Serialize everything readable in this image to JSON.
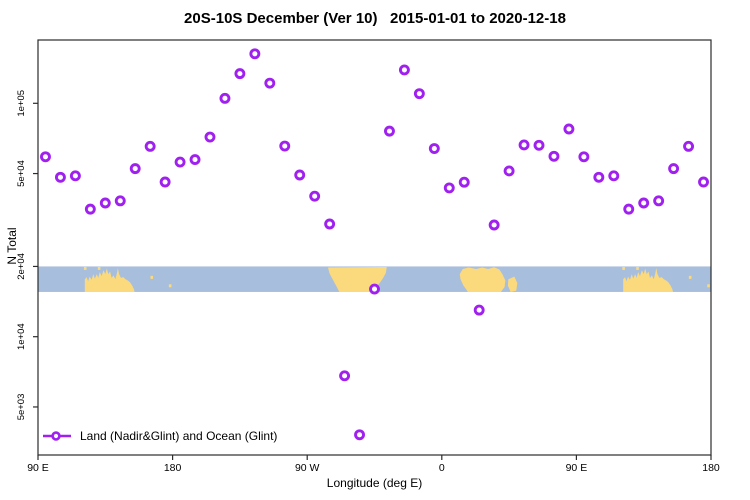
{
  "chart_data": {
    "type": "scatter",
    "title": "20S-10S December (Ver 10)   2015-01-01 to 2020-12-18",
    "xlabel": "Longitude (deg E)",
    "ylabel": "N Total",
    "x_axis": {
      "min": 90,
      "max": 540,
      "ticks": [
        {
          "label": "90 E",
          "lon": 90
        },
        {
          "label": "180",
          "lon": 180
        },
        {
          "label": "90 W",
          "lon": 270
        },
        {
          "label": "0",
          "lon": 360
        },
        {
          "label": "90 E",
          "lon": 450
        },
        {
          "label": "180",
          "lon": 540
        }
      ]
    },
    "y_axis": {
      "scale": "log",
      "min": 3100,
      "max": 186000,
      "ticks": [
        {
          "label": "1e+05",
          "value": 100000
        },
        {
          "label": "5e+04",
          "value": 50000
        },
        {
          "label": "2e+04",
          "value": 20000
        },
        {
          "label": "1e+04",
          "value": 10000
        },
        {
          "label": "5e+03",
          "value": 5000
        }
      ]
    },
    "series": [
      {
        "name": "Land (Nadir&Glint) and Ocean (Glint)",
        "marker": "open-circle",
        "color": "#A020F0",
        "points": [
          [
            95,
            59000
          ],
          [
            105,
            48200
          ],
          [
            115,
            48900
          ],
          [
            125,
            35200
          ],
          [
            135,
            37400
          ],
          [
            145,
            38200
          ],
          [
            155,
            52500
          ],
          [
            165,
            65400
          ],
          [
            175,
            46000
          ],
          [
            185,
            56000
          ],
          [
            195,
            57400
          ],
          [
            205,
            71700
          ],
          [
            215,
            105000
          ],
          [
            225,
            134000
          ],
          [
            235,
            163000
          ],
          [
            245,
            122000
          ],
          [
            255,
            65600
          ],
          [
            265,
            49300
          ],
          [
            275,
            40000
          ],
          [
            285,
            30400
          ],
          [
            295,
            6800
          ],
          [
            305,
            3800
          ],
          [
            315,
            16000
          ],
          [
            325,
            76000
          ],
          [
            335,
            139000
          ],
          [
            345,
            110000
          ],
          [
            355,
            64000
          ],
          [
            365,
            43400
          ],
          [
            375,
            45900
          ],
          [
            385,
            13000
          ],
          [
            395,
            30100
          ],
          [
            405,
            51300
          ],
          [
            415,
            66300
          ],
          [
            425,
            66100
          ],
          [
            435,
            59300
          ],
          [
            445,
            77600
          ],
          [
            455,
            59000
          ],
          [
            465,
            48200
          ],
          [
            475,
            48900
          ],
          [
            485,
            35200
          ],
          [
            495,
            37400
          ],
          [
            505,
            38200
          ],
          [
            515,
            52500
          ],
          [
            525,
            65400
          ],
          [
            535,
            46000
          ]
        ]
      }
    ],
    "map_strip": {
      "top_value": 20000,
      "bottom_value": 15550,
      "ocean_color": "#a8bedd",
      "land_color": "#fbd97d",
      "repeat_offsets": [
        0,
        360
      ],
      "land_polygons": [
        {
          "name": "australia",
          "points": [
            [
              121.3,
              1
            ],
            [
              121.3,
              0.5
            ],
            [
              122.5,
              0.42
            ],
            [
              123.5,
              0.58
            ],
            [
              124.5,
              0.4
            ],
            [
              125.8,
              0.52
            ],
            [
              127,
              0.3
            ],
            [
              128,
              0.48
            ],
            [
              129.3,
              0.3
            ],
            [
              130.3,
              0.45
            ],
            [
              131.3,
              0.22
            ],
            [
              132.5,
              0.38
            ],
            [
              133.8,
              0.15
            ],
            [
              135,
              0.3
            ],
            [
              136,
              0.08
            ],
            [
              137,
              0.3
            ],
            [
              138.2,
              0.2
            ],
            [
              139.2,
              0.45
            ],
            [
              140.5,
              0.35
            ],
            [
              141.7,
              0.5
            ],
            [
              142.7,
              0.28
            ],
            [
              143.4,
              0.06
            ],
            [
              144.2,
              0.3
            ],
            [
              145.5,
              0.45
            ],
            [
              147,
              0.42
            ],
            [
              148.5,
              0.5
            ],
            [
              150,
              0.55
            ],
            [
              151.5,
              0.62
            ],
            [
              153,
              0.75
            ],
            [
              154.2,
              0.9
            ],
            [
              154.6,
              1
            ]
          ]
        },
        {
          "name": "south-america",
          "points": [
            [
              283.9,
              0.04
            ],
            [
              323.2,
              0.02
            ],
            [
              322.6,
              0.25
            ],
            [
              320.8,
              0.45
            ],
            [
              318.5,
              0.65
            ],
            [
              315.5,
              0.85
            ],
            [
              311.5,
              1
            ],
            [
              291.5,
              1
            ],
            [
              289.3,
              0.75
            ],
            [
              287,
              0.5
            ],
            [
              285,
              0.28
            ],
            [
              283.9,
              0.04
            ]
          ]
        },
        {
          "name": "africa",
          "points": [
            [
              372,
              0.3
            ],
            [
              374,
              0.1
            ],
            [
              378,
              0.04
            ],
            [
              383,
              0.1
            ],
            [
              387,
              0.04
            ],
            [
              391,
              0.1
            ],
            [
              395,
              0.03
            ],
            [
              398.5,
              0.12
            ],
            [
              400.5,
              0.3
            ],
            [
              402.5,
              0.55
            ],
            [
              402,
              0.8
            ],
            [
              399.5,
              1
            ],
            [
              377.5,
              1
            ],
            [
              374.5,
              0.75
            ],
            [
              372.5,
              0.5
            ]
          ]
        },
        {
          "name": "madagascar",
          "points": [
            [
              404.5,
              0.5
            ],
            [
              408.5,
              0.4
            ],
            [
              410.5,
              0.65
            ],
            [
              409.8,
              0.95
            ],
            [
              406,
              1
            ],
            [
              404.2,
              0.75
            ]
          ]
        }
      ],
      "island_specks": [
        [
          121.5,
          0.02
        ],
        [
          130.8,
          0.02
        ],
        [
          166,
          0.37
        ],
        [
          178.3,
          0.7
        ]
      ]
    },
    "legend": {
      "label": "Land (Nadir&Glint) and Ocean (Glint)"
    }
  }
}
